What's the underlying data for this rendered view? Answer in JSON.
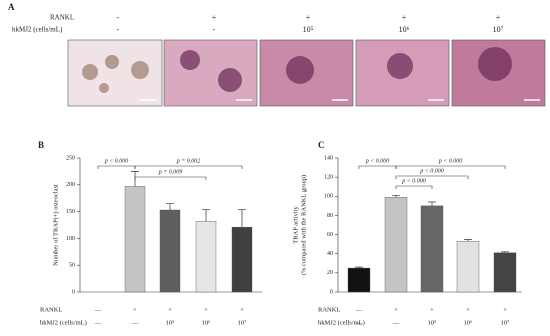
{
  "panel_a": {
    "label": "A",
    "rows": [
      {
        "label": "RANKL",
        "values": [
          "-",
          "+",
          "+",
          "+",
          "+"
        ]
      },
      {
        "label": "hkMJ2 (cells/mL)",
        "values": [
          "-",
          "-",
          "10⁵",
          "10⁶",
          "10⁷"
        ]
      }
    ]
  },
  "chart_data": [
    {
      "type": "bar",
      "panel": "B",
      "ylabel": [
        "Number of TRAP(+) osteoclast"
      ],
      "values": [
        0,
        197,
        153,
        132,
        121
      ],
      "errors": [
        null,
        28,
        12,
        22,
        33
      ],
      "colors": [
        "#ffffff",
        "#c4c4c4",
        "#5e5e5e",
        "#e6e6e6",
        "#404040"
      ],
      "ylim": [
        0,
        250
      ],
      "yticks": [
        0,
        50,
        100,
        150,
        200,
        250
      ],
      "annotations": [
        "p < 0.000",
        "p = 0.002",
        "p = 0.009"
      ],
      "rows": [
        {
          "label": "RANKL",
          "values": [
            "—",
            "+",
            "+",
            "+",
            "+"
          ]
        },
        {
          "label": "hkMJ2 (cells/mL)",
          "values": [
            "—",
            "—",
            "10⁵",
            "10⁶",
            "10⁷"
          ]
        }
      ]
    },
    {
      "type": "bar",
      "panel": "C",
      "ylabel": [
        "TRAP activity",
        "(% compared with the RANKL group)"
      ],
      "values": [
        25,
        99,
        90,
        53,
        41
      ],
      "errors": [
        1,
        2,
        4,
        2,
        1
      ],
      "colors": [
        "#111111",
        "#c4c4c4",
        "#666666",
        "#e2e2e2",
        "#444444"
      ],
      "ylim": [
        0,
        140
      ],
      "yticks": [
        0,
        20,
        40,
        60,
        80,
        100,
        120,
        140
      ],
      "annotations": [
        "p < 0.000",
        "p < 0.000",
        "p < 0.000",
        "p < 0.000"
      ],
      "rows": [
        {
          "label": "RANKL",
          "values": [
            "—",
            "+",
            "+",
            "+",
            "+"
          ]
        },
        {
          "label": "hkMJ2 (cells/mL)",
          "values": [
            "—",
            "—",
            "10⁵",
            "10⁶",
            "10⁷"
          ]
        }
      ]
    }
  ]
}
